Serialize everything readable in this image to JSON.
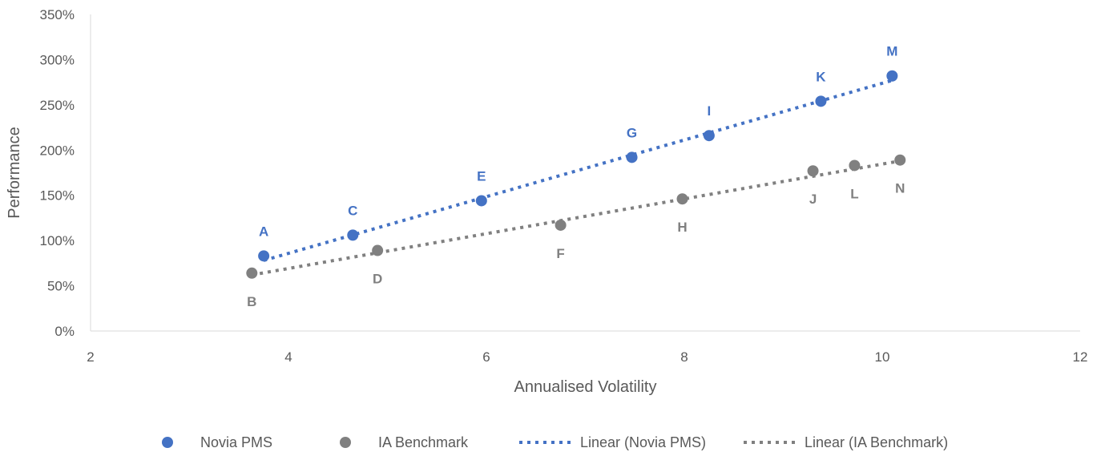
{
  "chart_data": {
    "type": "scatter",
    "title": "",
    "xlabel": "Annualised Volatility",
    "ylabel": "Performance",
    "xlim": [
      2,
      12
    ],
    "ylim": [
      0,
      3.5
    ],
    "x_ticks": [
      "2",
      "4",
      "6",
      "8",
      "10",
      "12"
    ],
    "y_ticks": [
      "0%",
      "50%",
      "100%",
      "150%",
      "200%",
      "250%",
      "300%",
      "350%"
    ],
    "grid": false,
    "legend_position": "bottom",
    "series": [
      {
        "name": "Novia PMS",
        "color": "#4472C4",
        "label_position": "above",
        "points": [
          {
            "label": "A",
            "x": 3.75,
            "y": 0.83
          },
          {
            "label": "C",
            "x": 4.65,
            "y": 1.06
          },
          {
            "label": "E",
            "x": 5.95,
            "y": 1.44
          },
          {
            "label": "G",
            "x": 7.47,
            "y": 1.92
          },
          {
            "label": "I",
            "x": 8.25,
            "y": 2.16
          },
          {
            "label": "K",
            "x": 9.38,
            "y": 2.54
          },
          {
            "label": "M",
            "x": 10.1,
            "y": 2.82
          }
        ]
      },
      {
        "name": "IA Benchmark",
        "color": "#808080",
        "label_position": "below",
        "points": [
          {
            "label": "B",
            "x": 3.63,
            "y": 0.64
          },
          {
            "label": "D",
            "x": 4.9,
            "y": 0.89
          },
          {
            "label": "F",
            "x": 6.75,
            "y": 1.17
          },
          {
            "label": "H",
            "x": 7.98,
            "y": 1.46
          },
          {
            "label": "J",
            "x": 9.3,
            "y": 1.77
          },
          {
            "label": "L",
            "x": 9.72,
            "y": 1.83
          },
          {
            "label": "N",
            "x": 10.18,
            "y": 1.89
          }
        ]
      }
    ],
    "trendlines": [
      {
        "name": "Linear (Novia PMS)",
        "color": "#4472C4",
        "style": "dotted",
        "x_range": [
          3.75,
          10.1
        ],
        "y_range": [
          0.78,
          2.77
        ]
      },
      {
        "name": "Linear (IA Benchmark)",
        "color": "#808080",
        "style": "dotted",
        "x_range": [
          3.63,
          10.18
        ],
        "y_range": [
          0.62,
          1.88
        ]
      }
    ],
    "legend": [
      {
        "label": "Novia PMS",
        "marker": "dot",
        "color": "#4472C4"
      },
      {
        "label": "IA Benchmark",
        "marker": "dot",
        "color": "#808080"
      },
      {
        "label": "Linear (Novia PMS)",
        "marker": "dotted-line",
        "color": "#4472C4"
      },
      {
        "label": "Linear (IA Benchmark)",
        "marker": "dotted-line",
        "color": "#808080"
      }
    ]
  }
}
